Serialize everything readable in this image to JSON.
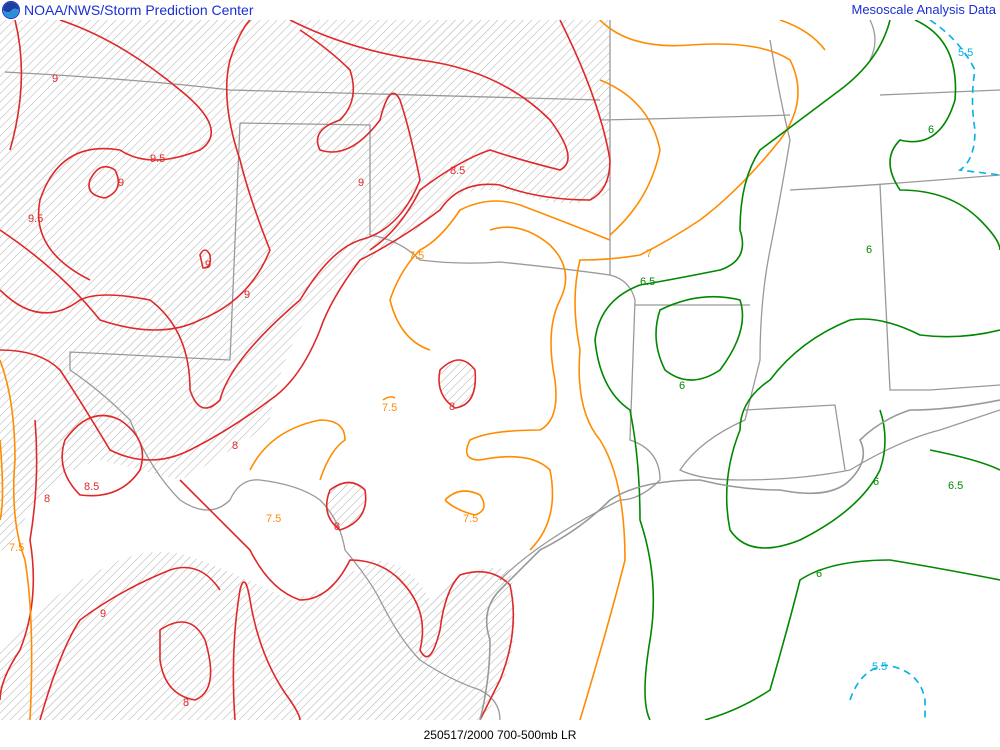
{
  "header": {
    "left_title": "NOAA/NWS/Storm Prediction Center",
    "right_title": "Mesoscale Analysis Data",
    "logo": "noaa-logo"
  },
  "footer": {
    "caption": "250517/2000 700-500mb LR"
  },
  "colors": {
    "header_text": "#1a2fd0",
    "contour_high": "#e02828",
    "contour_mid": "#ff8c00",
    "contour_low": "#008800",
    "contour_lowest": "#00b0e8",
    "borders": "#999999",
    "hatch": "#888888"
  },
  "contour_labels": {
    "l95a": "9.5",
    "l95b": "9.5",
    "l9a": "9",
    "l9b": "9",
    "l9c": "9",
    "l9d": "9",
    "l9e": "9",
    "l9f": "9",
    "l85a": "8.5",
    "l85b": "8.5",
    "l8a": "8",
    "l8b": "8",
    "l8c": "8",
    "l8d": "8",
    "l8e": "8",
    "l75a": "7.5",
    "l75b": "7.5",
    "l75c": "7.5",
    "l75d": "7.5",
    "l75e": "7.5",
    "l7a": "7",
    "l65a": "6.5",
    "l65b": "6.5",
    "l6a": "6",
    "l6b": "6",
    "l6c": "6",
    "l6d": "6",
    "l6e": "6",
    "l55a": "5.5",
    "l55b": "5.5"
  }
}
